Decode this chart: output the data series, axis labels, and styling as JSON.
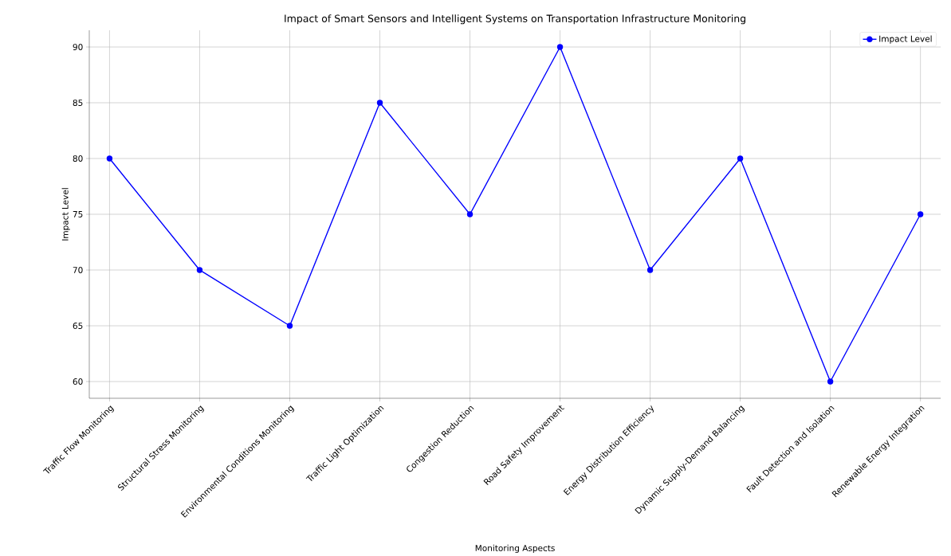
{
  "chart_data": {
    "type": "line",
    "title": "Impact of Smart Sensors and Intelligent Systems on Transportation Infrastructure Monitoring",
    "xlabel": "Monitoring Aspects",
    "ylabel": "Impact Level",
    "categories": [
      "Traffic Flow Monitoring",
      "Structural Stress Monitoring",
      "Environmental Conditions Monitoring",
      "Traffic Light Optimization",
      "Congestion Reduction",
      "Road Safety Improvement",
      "Energy Distribution Efficiency",
      "Dynamic Supply-Demand Balancing",
      "Fault Detection and Isolation",
      "Renewable Energy Integration"
    ],
    "series": [
      {
        "name": "Impact Level",
        "color": "#0000ff",
        "values": [
          80,
          70,
          65,
          85,
          75,
          90,
          70,
          80,
          60,
          75
        ]
      }
    ],
    "ylim": [
      58.5,
      91.5
    ],
    "yticks": [
      60,
      65,
      70,
      75,
      80,
      85,
      90
    ],
    "grid": true,
    "legend": "top right",
    "marker": "circle",
    "line_style": "solid"
  }
}
